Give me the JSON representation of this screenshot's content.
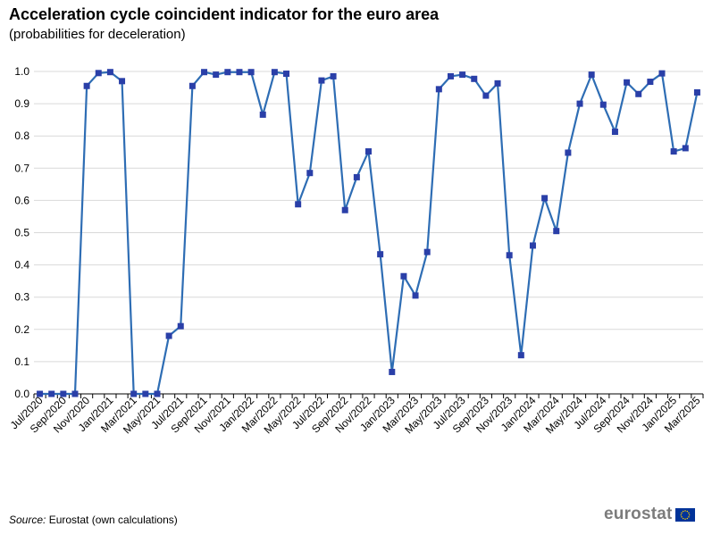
{
  "header": {
    "title": "Acceleration cycle coincident indicator for the euro area",
    "subtitle": "(probabilities  for deceleration)"
  },
  "footer": {
    "source_label": "Source:",
    "source_text": " Eurostat (own calculations)",
    "logo_text": "eurostat"
  },
  "colors": {
    "series": "#2e6db4",
    "marker": "#2a3fa8",
    "grid": "#d9d9d9",
    "axis": "#000000",
    "flag": "#003399",
    "flag_stars": "#ffcc00"
  },
  "chart_data": {
    "type": "line",
    "x": [
      "Jul/2020",
      "Aug/2020",
      "Sep/2020",
      "Oct/2020",
      "Nov/2020",
      "Dec/2020",
      "Jan/2021",
      "Feb/2021",
      "Mar/2021",
      "Apr/2021",
      "May/2021",
      "Jun/2021",
      "Jul/2021",
      "Aug/2021",
      "Sep/2021",
      "Oct/2021",
      "Nov/2021",
      "Dec/2021",
      "Jan/2022",
      "Feb/2022",
      "Mar/2022",
      "Apr/2022",
      "May/2022",
      "Jun/2022",
      "Jul/2022",
      "Aug/2022",
      "Sep/2022",
      "Oct/2022",
      "Nov/2022",
      "Dec/2022",
      "Jan/2023",
      "Feb/2023",
      "Mar/2023",
      "Apr/2023",
      "May/2023",
      "Jun/2023",
      "Jul/2023",
      "Aug/2023",
      "Sep/2023",
      "Oct/2023",
      "Nov/2023",
      "Dec/2023",
      "Jan/2024",
      "Feb/2024",
      "Mar/2024",
      "Apr/2024",
      "May/2024",
      "Jun/2024",
      "Jul/2024",
      "Aug/2024",
      "Sep/2024",
      "Oct/2024",
      "Nov/2024",
      "Dec/2024",
      "Jan/2025",
      "Feb/2025",
      "Mar/2025"
    ],
    "tick_labels": [
      "Jul/2020",
      "Sep/2020",
      "Nov/2020",
      "Jan/2021",
      "Mar/2021",
      "May/2021",
      "Jul/2021",
      "Sep/2021",
      "Nov/2021",
      "Jan/2022",
      "Mar/2022",
      "May/2022",
      "Jul/2022",
      "Sep/2022",
      "Nov/2022",
      "Jan/2023",
      "Mar/2023",
      "May/2023",
      "Jul/2023",
      "Sep/2023",
      "Nov/2023",
      "Jan/2024",
      "Mar/2024",
      "May/2024",
      "Jul/2024",
      "Sep/2024",
      "Nov/2024",
      "Jan/2025",
      "Mar/2025"
    ],
    "series": [
      {
        "values": [
          0.0,
          0.0,
          0.0,
          0.0,
          0.955,
          0.995,
          0.998,
          0.97,
          0.0,
          0.0,
          0.0,
          0.18,
          0.21,
          0.955,
          0.998,
          0.99,
          0.998,
          0.998,
          0.998,
          0.866,
          0.998,
          0.993,
          0.588,
          0.685,
          0.972,
          0.985,
          0.57,
          0.672,
          0.752,
          0.433,
          0.068,
          0.365,
          0.305,
          0.44,
          0.945,
          0.985,
          0.99,
          0.977,
          0.925,
          0.963,
          0.43,
          0.12,
          0.46,
          0.607,
          0.505,
          0.748,
          0.9,
          0.99,
          0.897,
          0.813,
          0.966,
          0.93,
          0.968,
          0.994,
          0.752,
          0.762,
          0.935
        ]
      }
    ],
    "ylim": [
      0,
      1
    ],
    "yticks": [
      "0.0",
      "0.1",
      "0.2",
      "0.3",
      "0.4",
      "0.5",
      "0.6",
      "0.7",
      "0.8",
      "0.9",
      "1.0"
    ],
    "grid": "horizontal",
    "legend": "none"
  }
}
